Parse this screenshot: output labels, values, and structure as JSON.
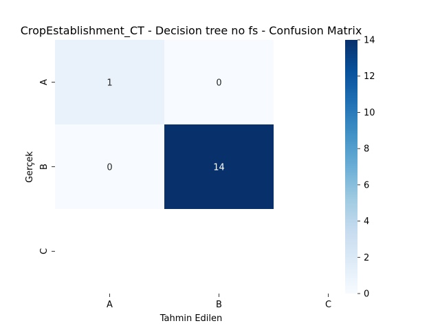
{
  "chart_data": {
    "type": "heatmap",
    "title": "CropEstablishment_CT - Decision tree no fs - Confusion Matrix",
    "xlabel": "Tahmin Edilen",
    "ylabel": "Gerçek",
    "x_categories": [
      "A",
      "B",
      "C"
    ],
    "y_categories": [
      "A",
      "B",
      "C"
    ],
    "cells": [
      {
        "row": "A",
        "col": "A",
        "value": 1
      },
      {
        "row": "A",
        "col": "B",
        "value": 0
      },
      {
        "row": "B",
        "col": "A",
        "value": 0
      },
      {
        "row": "B",
        "col": "B",
        "value": 14
      }
    ],
    "colorbar": {
      "min": 0,
      "max": 14,
      "ticks": [
        0,
        2,
        4,
        6,
        8,
        10,
        12,
        14
      ],
      "colormap": "Blues",
      "low_color": "#f7fbff",
      "high_color": "#08306b"
    },
    "legend": "colorbar-right",
    "grid": false
  }
}
